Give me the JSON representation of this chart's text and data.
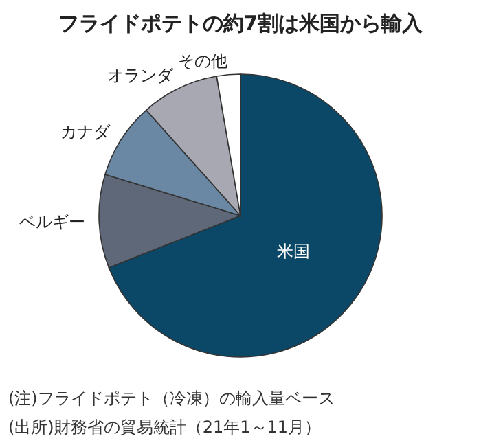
{
  "chart_data": {
    "type": "pie",
    "title": "フライドポテトの約7割は米国から輸入",
    "categories": [
      "米国",
      "ベルギー",
      "カナダ",
      "オランダ",
      "その他"
    ],
    "values": [
      69,
      10.7,
      8.7,
      8.9,
      2.7
    ],
    "colors": [
      "#0b4766",
      "#5f6878",
      "#6a87a3",
      "#a8a8b2",
      "#ffffff"
    ],
    "annotations": [
      "(注)フライドポテト（冷凍）の輸入量ベース",
      "(出所)財務省の貿易統計（21年1～11月）"
    ]
  }
}
